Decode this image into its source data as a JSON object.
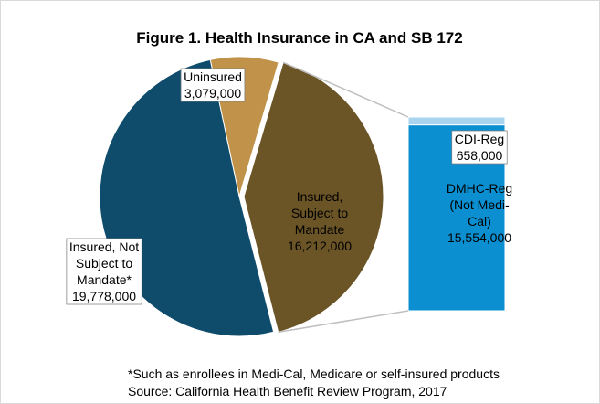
{
  "chart_data": {
    "type": "bar-of-pie",
    "title": "Figure 1. Health Insurance in CA and SB 172",
    "pie": {
      "categories": [
        "Uninsured",
        "Insured,\nSubject to\nMandate",
        "Insured, Not\nSubject to\nMandate*"
      ],
      "values": [
        3079000,
        16212000,
        19778000
      ],
      "value_labels": [
        "3,079,000",
        "16,212,000",
        "19,778,000"
      ],
      "colors": [
        "#c0924a",
        "#6b5527",
        "#0f4c6c"
      ]
    },
    "bar": {
      "categories": [
        "CDI-Reg",
        "DMHC-Reg\n(Not Medi-\nCal)"
      ],
      "values": [
        658000,
        15554000
      ],
      "value_labels": [
        "658,000",
        "15,554,000"
      ],
      "colors": [
        "#a9d4f0",
        "#0b8fd0"
      ]
    },
    "footnotes": [
      "*Such as enrollees in Medi-Cal, Medicare or self-insured products",
      "Source: California Health Benefit Review Program, 2017"
    ]
  }
}
